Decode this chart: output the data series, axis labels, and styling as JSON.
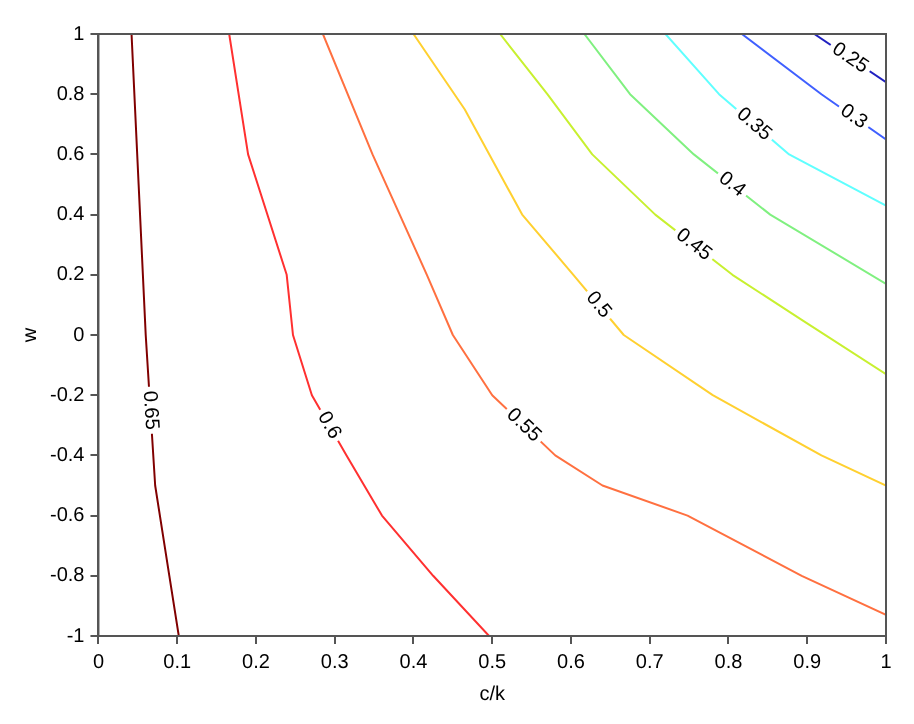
{
  "chart_data": {
    "type": "line",
    "xlabel": "c/k",
    "ylabel": "w",
    "xlim": [
      0,
      1
    ],
    "xticks": [
      0,
      0.1,
      0.2,
      0.3,
      0.4,
      0.5,
      0.6,
      0.7,
      0.8,
      0.9,
      1
    ],
    "ylim": [
      -1,
      1
    ],
    "yticks": [
      -1,
      -0.8,
      -0.6,
      -0.4,
      -0.2,
      0,
      0.2,
      0.4,
      0.6,
      0.8,
      1
    ],
    "grid": false,
    "legend": false,
    "marker": "none",
    "line_style": "solid",
    "series": [
      {
        "name": "0.65",
        "color": "#800000",
        "x": [
          0.042,
          0.051,
          0.06,
          0.072,
          0.09,
          0.102
        ],
        "values": [
          1,
          0.5,
          0,
          -0.5,
          -0.8,
          -1
        ]
      },
      {
        "name": "0.6",
        "color": "#ff3030",
        "x": [
          0.166,
          0.19,
          0.239,
          0.247,
          0.271,
          0.315,
          0.36,
          0.425,
          0.496
        ],
        "values": [
          1,
          0.6,
          0.2,
          0,
          -0.2,
          -0.4,
          -0.6,
          -0.8,
          -1
        ]
      },
      {
        "name": "0.55",
        "color": "#ff7040",
        "x": [
          0.285,
          0.348,
          0.417,
          0.45,
          0.5,
          0.58,
          0.64,
          0.748,
          0.893,
          1
        ],
        "values": [
          1,
          0.6,
          0.2,
          0,
          -0.2,
          -0.4,
          -0.5,
          -0.6,
          -0.8,
          -0.93
        ]
      },
      {
        "name": "0.5",
        "color": "#ffd030",
        "x": [
          0.4,
          0.465,
          0.538,
          0.603,
          0.667,
          0.78,
          0.918,
          1
        ],
        "values": [
          1,
          0.75,
          0.4,
          0.2,
          0,
          -0.2,
          -0.4,
          -0.5
        ]
      },
      {
        "name": "0.45",
        "color": "#c8f030",
        "x": [
          0.51,
          0.57,
          0.627,
          0.707,
          0.805,
          0.893,
          1
        ],
        "values": [
          1,
          0.8,
          0.6,
          0.4,
          0.2,
          0.05,
          -0.13
        ]
      },
      {
        "name": "0.4",
        "color": "#80f080",
        "x": [
          0.617,
          0.675,
          0.756,
          0.853,
          1
        ],
        "values": [
          1,
          0.8,
          0.6,
          0.4,
          0.17
        ]
      },
      {
        "name": "0.35",
        "color": "#60ffff",
        "x": [
          0.72,
          0.788,
          0.877,
          1
        ],
        "values": [
          1,
          0.8,
          0.6,
          0.43
        ]
      },
      {
        "name": "0.3",
        "color": "#4060ff",
        "x": [
          0.817,
          0.918,
          1
        ],
        "values": [
          1,
          0.8,
          0.65
        ]
      },
      {
        "name": "0.25",
        "color": "#2020c0",
        "x": [
          0.909,
          1
        ],
        "values": [
          1,
          0.84
        ]
      }
    ]
  }
}
